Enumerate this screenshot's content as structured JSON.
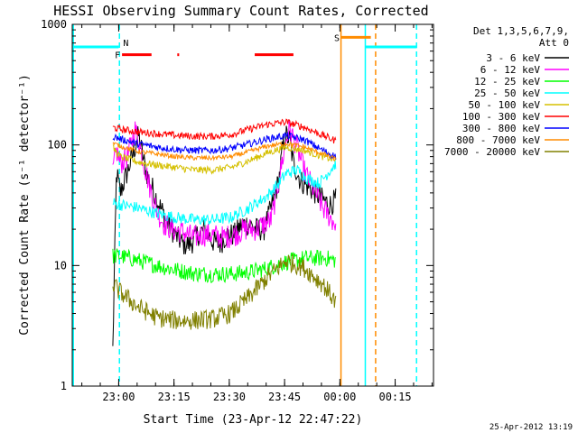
{
  "chart_data": {
    "type": "line",
    "title": "HESSI Observing Summary Count Rates, Corrected",
    "xlabel": "Start Time (23-Apr-12 22:47:22)",
    "ylabel": "Corrected Count Rate (s⁻¹ detector⁻¹)",
    "ylog": true,
    "ylim": [
      1,
      1000
    ],
    "xlim_minutes_after_start": [
      0,
      98
    ],
    "x_ticks": [
      {
        "label": "23:00",
        "minute": 12.6
      },
      {
        "label": "23:15",
        "minute": 27.6
      },
      {
        "label": "23:30",
        "minute": 42.6
      },
      {
        "label": "23:45",
        "minute": 57.6
      },
      {
        "label": "00:00",
        "minute": 72.6
      },
      {
        "label": "00:15",
        "minute": 87.6
      }
    ],
    "y_ticks": [
      {
        "label": "1",
        "value": 1
      },
      {
        "label": "10",
        "value": 10
      },
      {
        "label": "100",
        "value": 100
      },
      {
        "label": "1000",
        "value": 1000
      }
    ],
    "legend": {
      "header_line1": "Det 1,3,5,6,7,9,",
      "header_line2": "Att 0",
      "position": "right"
    },
    "series": [
      {
        "name": "3 - 6 keV",
        "color": "#000000",
        "x": [
          11,
          12,
          13,
          15,
          18,
          20,
          23,
          26,
          28,
          30,
          32,
          34,
          36,
          38,
          40,
          42,
          44,
          46,
          48,
          50,
          52,
          54,
          56,
          57,
          58,
          59,
          60,
          62,
          64,
          66,
          68,
          70,
          71.5
        ],
        "y": [
          2,
          60,
          40,
          60,
          120,
          60,
          35,
          22,
          18,
          15,
          15,
          18,
          20,
          16,
          15,
          18,
          18,
          22,
          22,
          20,
          20,
          30,
          50,
          90,
          120,
          110,
          70,
          50,
          45,
          40,
          35,
          32,
          35
        ]
      },
      {
        "name": "6 - 12 keV",
        "color": "#ff00ff",
        "x": [
          11,
          12,
          13,
          15,
          17,
          18,
          19,
          21,
          23,
          25,
          27,
          30,
          33,
          35,
          38,
          41,
          44,
          47,
          50,
          52,
          54,
          56,
          58,
          59,
          61,
          63,
          66,
          68,
          70,
          71.5
        ],
        "y": [
          60,
          90,
          70,
          80,
          135,
          110,
          80,
          45,
          28,
          22,
          20,
          19,
          17,
          18,
          18,
          17,
          18,
          20,
          20,
          22,
          24,
          50,
          110,
          135,
          95,
          60,
          40,
          30,
          25,
          22
        ]
      },
      {
        "name": "12 - 25 keV",
        "color": "#00ff00",
        "x": [
          11,
          12,
          13,
          18,
          23,
          28,
          33,
          38,
          43,
          48,
          53,
          57,
          60,
          63,
          66,
          69,
          71.5
        ],
        "y": [
          12,
          12,
          12,
          11,
          10,
          9.2,
          8.6,
          8.5,
          8.5,
          8.8,
          9.5,
          10.5,
          11,
          11.5,
          11.5,
          11.5,
          11
        ]
      },
      {
        "name": "25 - 50 keV",
        "color": "#00ffff",
        "x": [
          11,
          13,
          18,
          23,
          28,
          33,
          38,
          43,
          48,
          53,
          56,
          58,
          61,
          64,
          67,
          70,
          71.5
        ],
        "y": [
          33,
          32,
          30,
          27,
          25,
          24,
          24,
          25,
          30,
          38,
          48,
          58,
          62,
          52,
          48,
          62,
          70
        ]
      },
      {
        "name": "50 - 100 keV",
        "color": "#d5c000",
        "x": [
          11,
          13,
          18,
          23,
          28,
          33,
          38,
          43,
          48,
          53,
          58,
          63,
          68,
          71.5
        ],
        "y": [
          95,
          80,
          72,
          68,
          65,
          62,
          62,
          65,
          74,
          86,
          96,
          90,
          80,
          75
        ]
      },
      {
        "name": "100 - 300 keV",
        "color": "#ff0000",
        "x": [
          11,
          13,
          18,
          23,
          28,
          33,
          38,
          43,
          48,
          53,
          58,
          63,
          68,
          71.5
        ],
        "y": [
          140,
          135,
          128,
          124,
          120,
          118,
          118,
          122,
          135,
          148,
          155,
          140,
          120,
          108
        ]
      },
      {
        "name": "300 - 800 keV",
        "color": "#0000ff",
        "x": [
          11,
          13,
          18,
          23,
          28,
          33,
          38,
          43,
          48,
          53,
          58,
          63,
          68,
          71.5
        ],
        "y": [
          118,
          112,
          102,
          96,
          92,
          90,
          90,
          94,
          102,
          112,
          120,
          110,
          90,
          80
        ]
      },
      {
        "name": "800 - 7000 keV",
        "color": "#ff8c00",
        "x": [
          11,
          13,
          18,
          23,
          28,
          33,
          38,
          43,
          48,
          53,
          58,
          63,
          68,
          71.5
        ],
        "y": [
          103,
          98,
          88,
          84,
          80,
          78,
          78,
          80,
          88,
          98,
          103,
          96,
          84,
          76
        ]
      },
      {
        "name": "7000 - 20000 keV",
        "color": "#808000",
        "x": [
          11,
          13,
          18,
          23,
          28,
          33,
          38,
          43,
          48,
          53,
          58,
          63,
          68,
          71.5
        ],
        "y": [
          7,
          6,
          4.5,
          3.7,
          3.5,
          3.5,
          3.6,
          4,
          5.5,
          8,
          11,
          9.5,
          7,
          5
        ]
      }
    ],
    "flags": [
      {
        "label": "N",
        "color": "#00ffff",
        "y": 650,
        "segments": [
          [
            0,
            12.6
          ],
          [
            79.5,
            93.5
          ]
        ]
      },
      {
        "label": "F",
        "color": "#ff0000",
        "y": 560,
        "segments": [
          [
            13.5,
            21.5
          ],
          [
            28.5,
            29
          ],
          [
            49.5,
            60
          ]
        ]
      },
      {
        "label": "S",
        "color": "#ff8c00",
        "y": 780,
        "segments": [
          [
            73,
            81
          ]
        ]
      }
    ],
    "vlines": [
      {
        "minute": 0.3,
        "color": "#00ffff",
        "style": "solid"
      },
      {
        "minute": 12.8,
        "color": "#00ffff",
        "style": "dashed"
      },
      {
        "minute": 72.9,
        "color": "#ff8c00",
        "style": "solid"
      },
      {
        "minute": 79.5,
        "color": "#00ffff",
        "style": "solid"
      },
      {
        "minute": 82.3,
        "color": "#ff8c00",
        "style": "dashed"
      },
      {
        "minute": 93.4,
        "color": "#00ffff",
        "style": "dashed"
      }
    ]
  },
  "timestamp": "25-Apr-2012 13:19"
}
